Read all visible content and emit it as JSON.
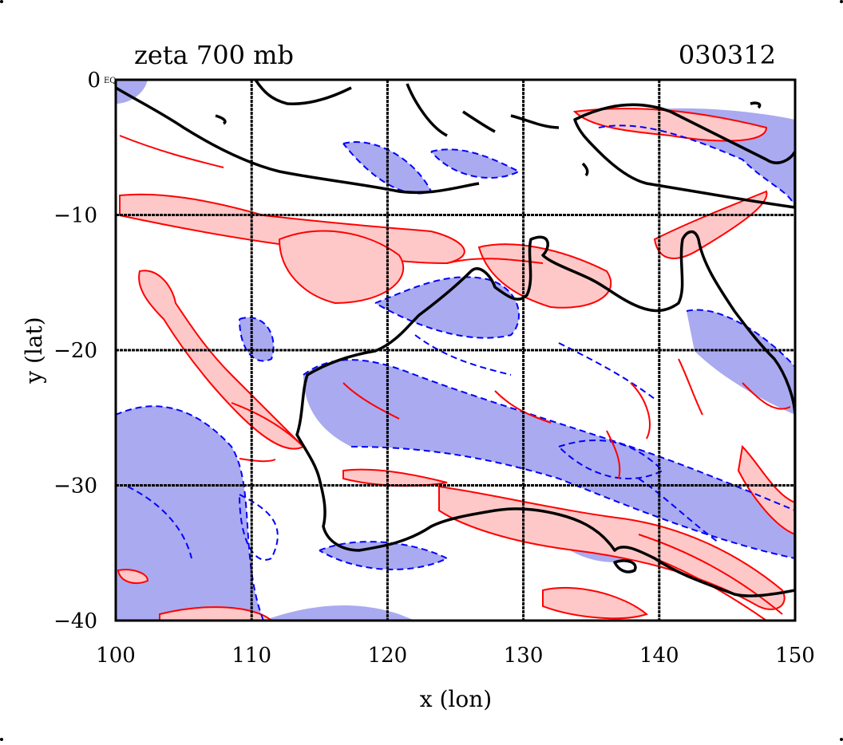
{
  "figure": {
    "title_left": "zeta 700 mb",
    "title_right": "030312",
    "xlabel": "x (lon)",
    "ylabel": "y (lat)",
    "corner_label": "EQ"
  },
  "map_extent": {
    "lon": [
      100,
      150
    ],
    "lat": [
      -40,
      0
    ]
  },
  "x_ticks": [
    {
      "value": 100,
      "label": "100"
    },
    {
      "value": 110,
      "label": "110"
    },
    {
      "value": 120,
      "label": "120"
    },
    {
      "value": 130,
      "label": "130"
    },
    {
      "value": 140,
      "label": "140"
    },
    {
      "value": 150,
      "label": "150"
    }
  ],
  "y_ticks": [
    {
      "value": 0,
      "label": "0"
    },
    {
      "value": -10,
      "label": "−10"
    },
    {
      "value": -20,
      "label": "−20"
    },
    {
      "value": -30,
      "label": "−30"
    },
    {
      "value": -40,
      "label": "−40"
    }
  ],
  "gridlines": {
    "lon": [
      110,
      120,
      130,
      140
    ],
    "lat": [
      -10,
      -20,
      -30
    ]
  },
  "colors": {
    "positive_line": "#ff0000",
    "positive_fill": "#ffc8c8",
    "negative_line": "#0000ff",
    "negative_fill": "#aaaaf0",
    "coastline": "#000000",
    "grid": "#000000"
  },
  "legend_semantics": {
    "positive_contours": "solid red, shaded pink",
    "negative_contours": "dashed blue, shaded lavender"
  }
}
